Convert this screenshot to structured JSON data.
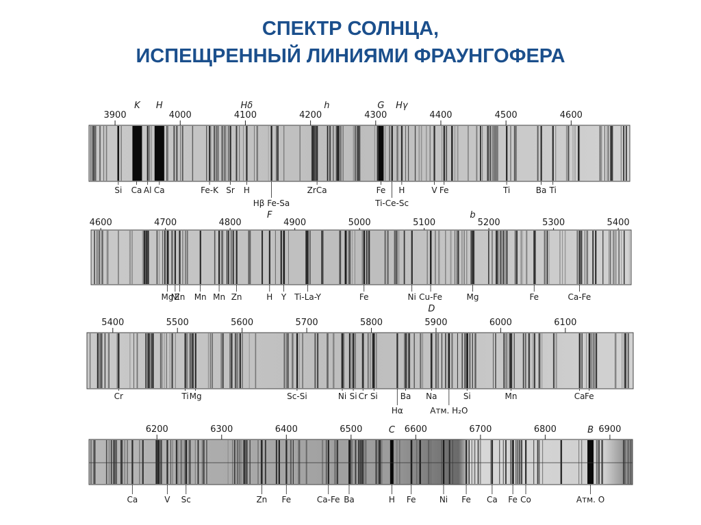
{
  "title": {
    "line1": "СПЕКТР СОЛНЦА,",
    "line2": "ИСПЕЩРЕННЫЙ ЛИНИЯМИ ФРАУНГОФЕРА"
  },
  "strips": [
    {
      "id": 1,
      "range": [
        3860,
        4690
      ],
      "ticks": [
        3900,
        4000,
        4100,
        4200,
        4300,
        4400,
        4500,
        4600
      ],
      "fraunhofer": [
        {
          "text": "K",
          "wl": 3934
        },
        {
          "text": "H",
          "wl": 3968
        },
        {
          "text": "Hδ",
          "wl": 4102
        },
        {
          "text": "h",
          "wl": 4225
        },
        {
          "text": "G",
          "wl": 4308
        },
        {
          "text": "Hγ",
          "wl": 4340
        }
      ],
      "elements": [
        {
          "text": "Si",
          "wl": 3905,
          "row": 0
        },
        {
          "text": "Ca",
          "wl": 3933,
          "row": 0
        },
        {
          "text": "Al",
          "wl": 3950,
          "row": 0
        },
        {
          "text": "Ca",
          "wl": 3968,
          "row": 0
        },
        {
          "text": "Fe-K",
          "wl": 4045,
          "row": 0
        },
        {
          "text": "Sr",
          "wl": 4077,
          "row": 0
        },
        {
          "text": "H",
          "wl": 4102,
          "row": 0
        },
        {
          "text": "ZrCa",
          "wl": 4210,
          "row": 0
        },
        {
          "text": "Fe",
          "wl": 4308,
          "row": 0
        },
        {
          "text": "H",
          "wl": 4340,
          "row": 0
        },
        {
          "text": "V",
          "wl": 4390,
          "row": 0
        },
        {
          "text": "Fe",
          "wl": 4405,
          "row": 0
        },
        {
          "text": "Ti",
          "wl": 4501,
          "row": 0
        },
        {
          "text": "Ba",
          "wl": 4554,
          "row": 0
        },
        {
          "text": "Ti",
          "wl": 4572,
          "row": 0
        },
        {
          "text": "Hβ Fe-Sa",
          "wl": 4140,
          "row": 1
        },
        {
          "text": "Ti-Ce-Sc",
          "wl": 4325,
          "row": 1
        }
      ]
    },
    {
      "id": 2,
      "range": [
        4585,
        5420
      ],
      "ticks": [
        4600,
        4700,
        4800,
        4900,
        5000,
        5100,
        5200,
        5300,
        5400
      ],
      "fraunhofer": [
        {
          "text": "F",
          "wl": 4861
        },
        {
          "text": "b",
          "wl": 5175
        }
      ],
      "elements": [
        {
          "text": "Mg",
          "wl": 4703,
          "row": 0
        },
        {
          "text": "Ni",
          "wl": 4715,
          "row": 0
        },
        {
          "text": "Zn",
          "wl": 4722,
          "row": 0
        },
        {
          "text": "Mn",
          "wl": 4754,
          "row": 0
        },
        {
          "text": "Mn",
          "wl": 4783,
          "row": 0
        },
        {
          "text": "Zn",
          "wl": 4810,
          "row": 0
        },
        {
          "text": "H",
          "wl": 4861,
          "row": 0
        },
        {
          "text": "Y",
          "wl": 4883,
          "row": 0
        },
        {
          "text": "Ti-La-Y",
          "wl": 4920,
          "row": 0
        },
        {
          "text": "Fe",
          "wl": 5007,
          "row": 0
        },
        {
          "text": "Ni",
          "wl": 5081,
          "row": 0
        },
        {
          "text": "Cu-Fe",
          "wl": 5110,
          "row": 0
        },
        {
          "text": "Mg",
          "wl": 5175,
          "row": 0
        },
        {
          "text": "Fe",
          "wl": 5270,
          "row": 0
        },
        {
          "text": "Ca-Fe",
          "wl": 5340,
          "row": 0
        }
      ]
    },
    {
      "id": 3,
      "range": [
        5360,
        6205
      ],
      "ticks": [
        5400,
        5500,
        5600,
        5700,
        5800,
        5900,
        6000,
        6100
      ],
      "fraunhofer": [
        {
          "text": "D",
          "wl": 5893
        }
      ],
      "elements": [
        {
          "text": "Cr",
          "wl": 5409,
          "row": 0
        },
        {
          "text": "Ti",
          "wl": 5512,
          "row": 0
        },
        {
          "text": "Mg",
          "wl": 5528,
          "row": 0
        },
        {
          "text": "Sc-Si",
          "wl": 5685,
          "row": 0
        },
        {
          "text": "Ni",
          "wl": 5755,
          "row": 0
        },
        {
          "text": "Si",
          "wl": 5772,
          "row": 0
        },
        {
          "text": "Cr",
          "wl": 5787,
          "row": 0
        },
        {
          "text": "Si",
          "wl": 5804,
          "row": 0
        },
        {
          "text": "Ba",
          "wl": 5853,
          "row": 0
        },
        {
          "text": "Na",
          "wl": 5893,
          "row": 0
        },
        {
          "text": "Si",
          "wl": 5948,
          "row": 0
        },
        {
          "text": "Mn",
          "wl": 6016,
          "row": 0
        },
        {
          "text": "Ca",
          "wl": 6122,
          "row": 0
        },
        {
          "text": "Fe",
          "wl": 6137,
          "row": 0
        },
        {
          "text": "Hα",
          "wl": 5840,
          "row": 1
        },
        {
          "text": "Атм. H₂O",
          "wl": 5920,
          "row": 1
        }
      ]
    },
    {
      "id": 4,
      "range": [
        6095,
        6935
      ],
      "ticks": [
        6200,
        6300,
        6400,
        6500,
        6600,
        6700,
        6800,
        6900
      ],
      "fraunhofer": [
        {
          "text": "C",
          "wl": 6563
        },
        {
          "text": "B",
          "wl": 6870
        }
      ],
      "elements": [
        {
          "text": "Ca",
          "wl": 6162,
          "row": 0
        },
        {
          "text": "V",
          "wl": 6216,
          "row": 0
        },
        {
          "text": "Sc",
          "wl": 6245,
          "row": 0
        },
        {
          "text": "Zn",
          "wl": 6362,
          "row": 0
        },
        {
          "text": "Fe",
          "wl": 6400,
          "row": 0
        },
        {
          "text": "Ca-Fe",
          "wl": 6465,
          "row": 0
        },
        {
          "text": "Ba",
          "wl": 6497,
          "row": 0
        },
        {
          "text": "H",
          "wl": 6563,
          "row": 0
        },
        {
          "text": "Fe",
          "wl": 6593,
          "row": 0
        },
        {
          "text": "Ni",
          "wl": 6643,
          "row": 0
        },
        {
          "text": "Fe",
          "wl": 6678,
          "row": 0
        },
        {
          "text": "Ca",
          "wl": 6718,
          "row": 0
        },
        {
          "text": "Fe",
          "wl": 6750,
          "row": 0
        },
        {
          "text": "Co",
          "wl": 6770,
          "row": 0
        },
        {
          "text": "Атм. O",
          "wl": 6870,
          "row": 0
        }
      ]
    }
  ]
}
